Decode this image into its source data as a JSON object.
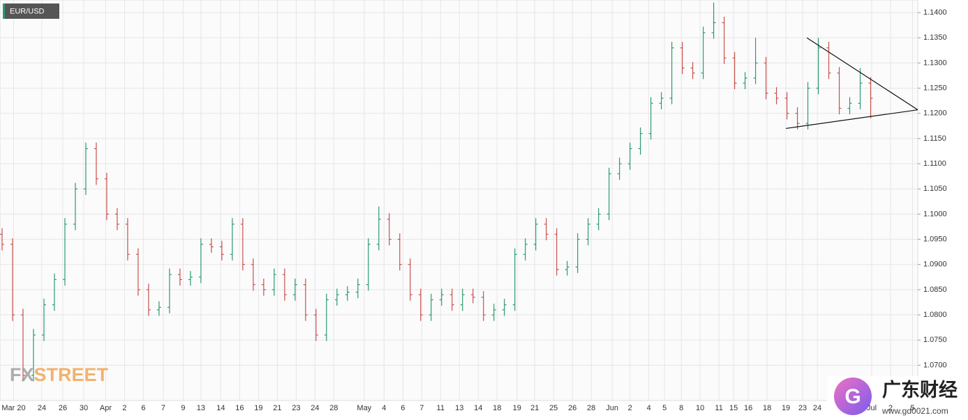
{
  "chart_data": {
    "type": "ohlc",
    "title": "EUR/USD",
    "up_color": "#2a9a6e",
    "down_color": "#c8504a",
    "grid": true,
    "xlim": [
      -0.2,
      87.5
    ],
    "ylim": [
      1.063,
      1.1425
    ],
    "open": [
      1.096,
      1.094,
      1.08,
      1.068,
      1.076,
      1.082,
      1.087,
      1.098,
      1.105,
      1.113,
      1.107,
      1.1,
      1.098,
      1.092,
      1.085,
      1.081,
      1.0815,
      1.088,
      1.087,
      1.0875,
      1.094,
      1.0935,
      1.092,
      1.098,
      1.09,
      1.086,
      1.085,
      1.088,
      1.084,
      1.086,
      1.08,
      1.076,
      1.083,
      1.084,
      1.0845,
      1.086,
      1.094,
      1.099,
      1.095,
      1.09,
      1.084,
      1.08,
      1.083,
      1.084,
      1.082,
      1.084,
      1.0835,
      1.08,
      1.081,
      1.082,
      1.092,
      1.094,
      1.098,
      1.096,
      1.089,
      1.0895,
      1.095,
      1.098,
      1.1,
      1.108,
      1.11,
      1.113,
      1.116,
      1.122,
      1.123,
      1.133,
      1.129,
      1.128,
      1.136,
      1.138,
      1.131,
      1.126,
      1.127,
      1.13,
      1.124,
      1.123,
      1.12,
      1.118,
      1.125,
      1.133,
      1.128,
      1.121,
      1.122,
      1.126
    ],
    "high": [
      1.0972,
      1.0952,
      1.0812,
      1.0772,
      1.0832,
      1.0882,
      1.0992,
      1.1062,
      1.1142,
      1.1142,
      1.1082,
      1.1012,
      1.0992,
      1.0932,
      1.0862,
      1.0827,
      1.0892,
      1.0892,
      1.0887,
      1.0952,
      1.0952,
      1.0947,
      1.0992,
      1.0992,
      1.0912,
      1.0872,
      1.0892,
      1.0892,
      1.0872,
      1.0872,
      1.0812,
      1.0842,
      1.0852,
      1.0857,
      1.0872,
      1.0952,
      1.1015,
      1.1002,
      1.0962,
      1.0912,
      1.0852,
      1.0842,
      1.0852,
      1.0852,
      1.0852,
      1.0852,
      1.0847,
      1.0822,
      1.0832,
      1.0932,
      1.0952,
      1.0992,
      1.0992,
      1.0972,
      1.0907,
      1.0962,
      1.0992,
      1.1012,
      1.1092,
      1.1112,
      1.1142,
      1.1172,
      1.1232,
      1.1242,
      1.1342,
      1.1342,
      1.1302,
      1.1372,
      1.142,
      1.1392,
      1.1322,
      1.1282,
      1.135,
      1.1312,
      1.1252,
      1.1242,
      1.1212,
      1.1262,
      1.135,
      1.1342,
      1.1292,
      1.1232,
      1.129,
      1.1272
    ],
    "low": [
      1.0928,
      1.0788,
      1.0668,
      1.0668,
      1.0748,
      1.0808,
      1.0858,
      1.0968,
      1.1038,
      1.1058,
      1.0988,
      1.0968,
      1.0908,
      1.0838,
      1.0798,
      1.0798,
      1.0803,
      1.0858,
      1.0858,
      1.0863,
      1.0923,
      1.0908,
      1.0908,
      1.0888,
      1.0848,
      1.0838,
      1.0838,
      1.0828,
      1.0828,
      1.0788,
      1.0748,
      1.0748,
      1.0818,
      1.0828,
      1.0833,
      1.0848,
      1.0928,
      1.0938,
      1.0888,
      1.0828,
      1.0788,
      1.0788,
      1.0818,
      1.0808,
      1.0808,
      1.0823,
      1.0788,
      1.0788,
      1.0798,
      1.0808,
      1.0908,
      1.0928,
      1.0948,
      1.0878,
      1.0878,
      1.0883,
      1.0938,
      1.0968,
      1.0988,
      1.1068,
      1.1088,
      1.1118,
      1.1148,
      1.1208,
      1.1218,
      1.1278,
      1.1268,
      1.1268,
      1.1348,
      1.1298,
      1.1248,
      1.1248,
      1.1258,
      1.1228,
      1.1218,
      1.1188,
      1.1168,
      1.1168,
      1.1238,
      1.1268,
      1.1198,
      1.1198,
      1.1208,
      1.119
    ],
    "close": [
      1.094,
      1.08,
      1.068,
      1.076,
      1.082,
      1.087,
      1.098,
      1.105,
      1.113,
      1.107,
      1.1,
      1.098,
      1.092,
      1.085,
      1.081,
      1.0815,
      1.088,
      1.087,
      1.0875,
      1.094,
      1.0935,
      1.092,
      1.098,
      1.09,
      1.086,
      1.085,
      1.088,
      1.084,
      1.086,
      1.08,
      1.076,
      1.083,
      1.084,
      1.0845,
      1.086,
      1.094,
      1.099,
      1.095,
      1.09,
      1.084,
      1.08,
      1.083,
      1.084,
      1.082,
      1.084,
      1.0835,
      1.08,
      1.081,
      1.082,
      1.092,
      1.094,
      1.098,
      1.096,
      1.089,
      1.0895,
      1.095,
      1.098,
      1.1,
      1.108,
      1.11,
      1.113,
      1.116,
      1.122,
      1.123,
      1.133,
      1.129,
      1.128,
      1.136,
      1.138,
      1.131,
      1.126,
      1.127,
      1.13,
      1.124,
      1.123,
      1.12,
      1.118,
      1.125,
      1.133,
      1.128,
      1.121,
      1.122,
      1.126,
      1.123
    ],
    "yticks": [
      {
        "value": 1.07,
        "label": "1.0700"
      },
      {
        "value": 1.075,
        "label": "1.0750"
      },
      {
        "value": 1.08,
        "label": "1.0800"
      },
      {
        "value": 1.085,
        "label": "1.0850"
      },
      {
        "value": 1.09,
        "label": "1.0900"
      },
      {
        "value": 1.095,
        "label": "1.0950"
      },
      {
        "value": 1.1,
        "label": "1.1000"
      },
      {
        "value": 1.105,
        "label": "1.1050"
      },
      {
        "value": 1.11,
        "label": "1.1100"
      },
      {
        "value": 1.115,
        "label": "1.1150"
      },
      {
        "value": 1.12,
        "label": "1.1200"
      },
      {
        "value": 1.125,
        "label": "1.1250"
      },
      {
        "value": 1.13,
        "label": "1.1300"
      },
      {
        "value": 1.135,
        "label": "1.1350"
      },
      {
        "value": 1.14,
        "label": "1.1400"
      }
    ],
    "xticks": [
      {
        "value": 1.1,
        "label": "Mar 20"
      },
      {
        "value": 3.8,
        "label": "24"
      },
      {
        "value": 5.8,
        "label": "26"
      },
      {
        "value": 7.8,
        "label": "30"
      },
      {
        "value": 9.9,
        "label": "Apr"
      },
      {
        "value": 11.7,
        "label": "2"
      },
      {
        "value": 13.5,
        "label": "6"
      },
      {
        "value": 15.4,
        "label": "7"
      },
      {
        "value": 17.3,
        "label": "9"
      },
      {
        "value": 19,
        "label": "13"
      },
      {
        "value": 20.9,
        "label": "14"
      },
      {
        "value": 22.7,
        "label": "16"
      },
      {
        "value": 24.5,
        "label": "19"
      },
      {
        "value": 26.3,
        "label": "21"
      },
      {
        "value": 28.1,
        "label": "23"
      },
      {
        "value": 29.9,
        "label": "24"
      },
      {
        "value": 31.7,
        "label": "28"
      },
      {
        "value": 34.6,
        "label": "May"
      },
      {
        "value": 36.5,
        "label": "4"
      },
      {
        "value": 38.3,
        "label": "6"
      },
      {
        "value": 40.1,
        "label": "7"
      },
      {
        "value": 41.9,
        "label": "11"
      },
      {
        "value": 43.7,
        "label": "13"
      },
      {
        "value": 45.5,
        "label": "14"
      },
      {
        "value": 47.3,
        "label": "18"
      },
      {
        "value": 49.2,
        "label": "19"
      },
      {
        "value": 50.9,
        "label": "21"
      },
      {
        "value": 52.7,
        "label": "25"
      },
      {
        "value": 54.5,
        "label": "26"
      },
      {
        "value": 56.3,
        "label": "28"
      },
      {
        "value": 58.3,
        "label": "Jun"
      },
      {
        "value": 60,
        "label": "2"
      },
      {
        "value": 61.8,
        "label": "4"
      },
      {
        "value": 63.3,
        "label": "5"
      },
      {
        "value": 64.9,
        "label": "8"
      },
      {
        "value": 66.7,
        "label": "10"
      },
      {
        "value": 68.5,
        "label": "11"
      },
      {
        "value": 69.9,
        "label": "15"
      },
      {
        "value": 71.3,
        "label": "16"
      },
      {
        "value": 73.1,
        "label": "18"
      },
      {
        "value": 74.9,
        "label": "19"
      },
      {
        "value": 76.5,
        "label": "23"
      },
      {
        "value": 77.9,
        "label": "24"
      },
      {
        "value": 83.1,
        "label": "Jul"
      },
      {
        "value": 84.9,
        "label": "2"
      },
      {
        "value": 87,
        "label": "5"
      }
    ],
    "trendlines": [
      {
        "x": [
          76.9,
          87.5
        ],
        "y": [
          1.135,
          1.1207
        ]
      },
      {
        "x": [
          74.9,
          87.5
        ],
        "y": [
          1.117,
          1.1207
        ]
      }
    ]
  },
  "watermark": {
    "brand_a": "FX",
    "brand_b": "STREET",
    "site_name": "广东财经",
    "site_url": "www.gd0021.com"
  }
}
